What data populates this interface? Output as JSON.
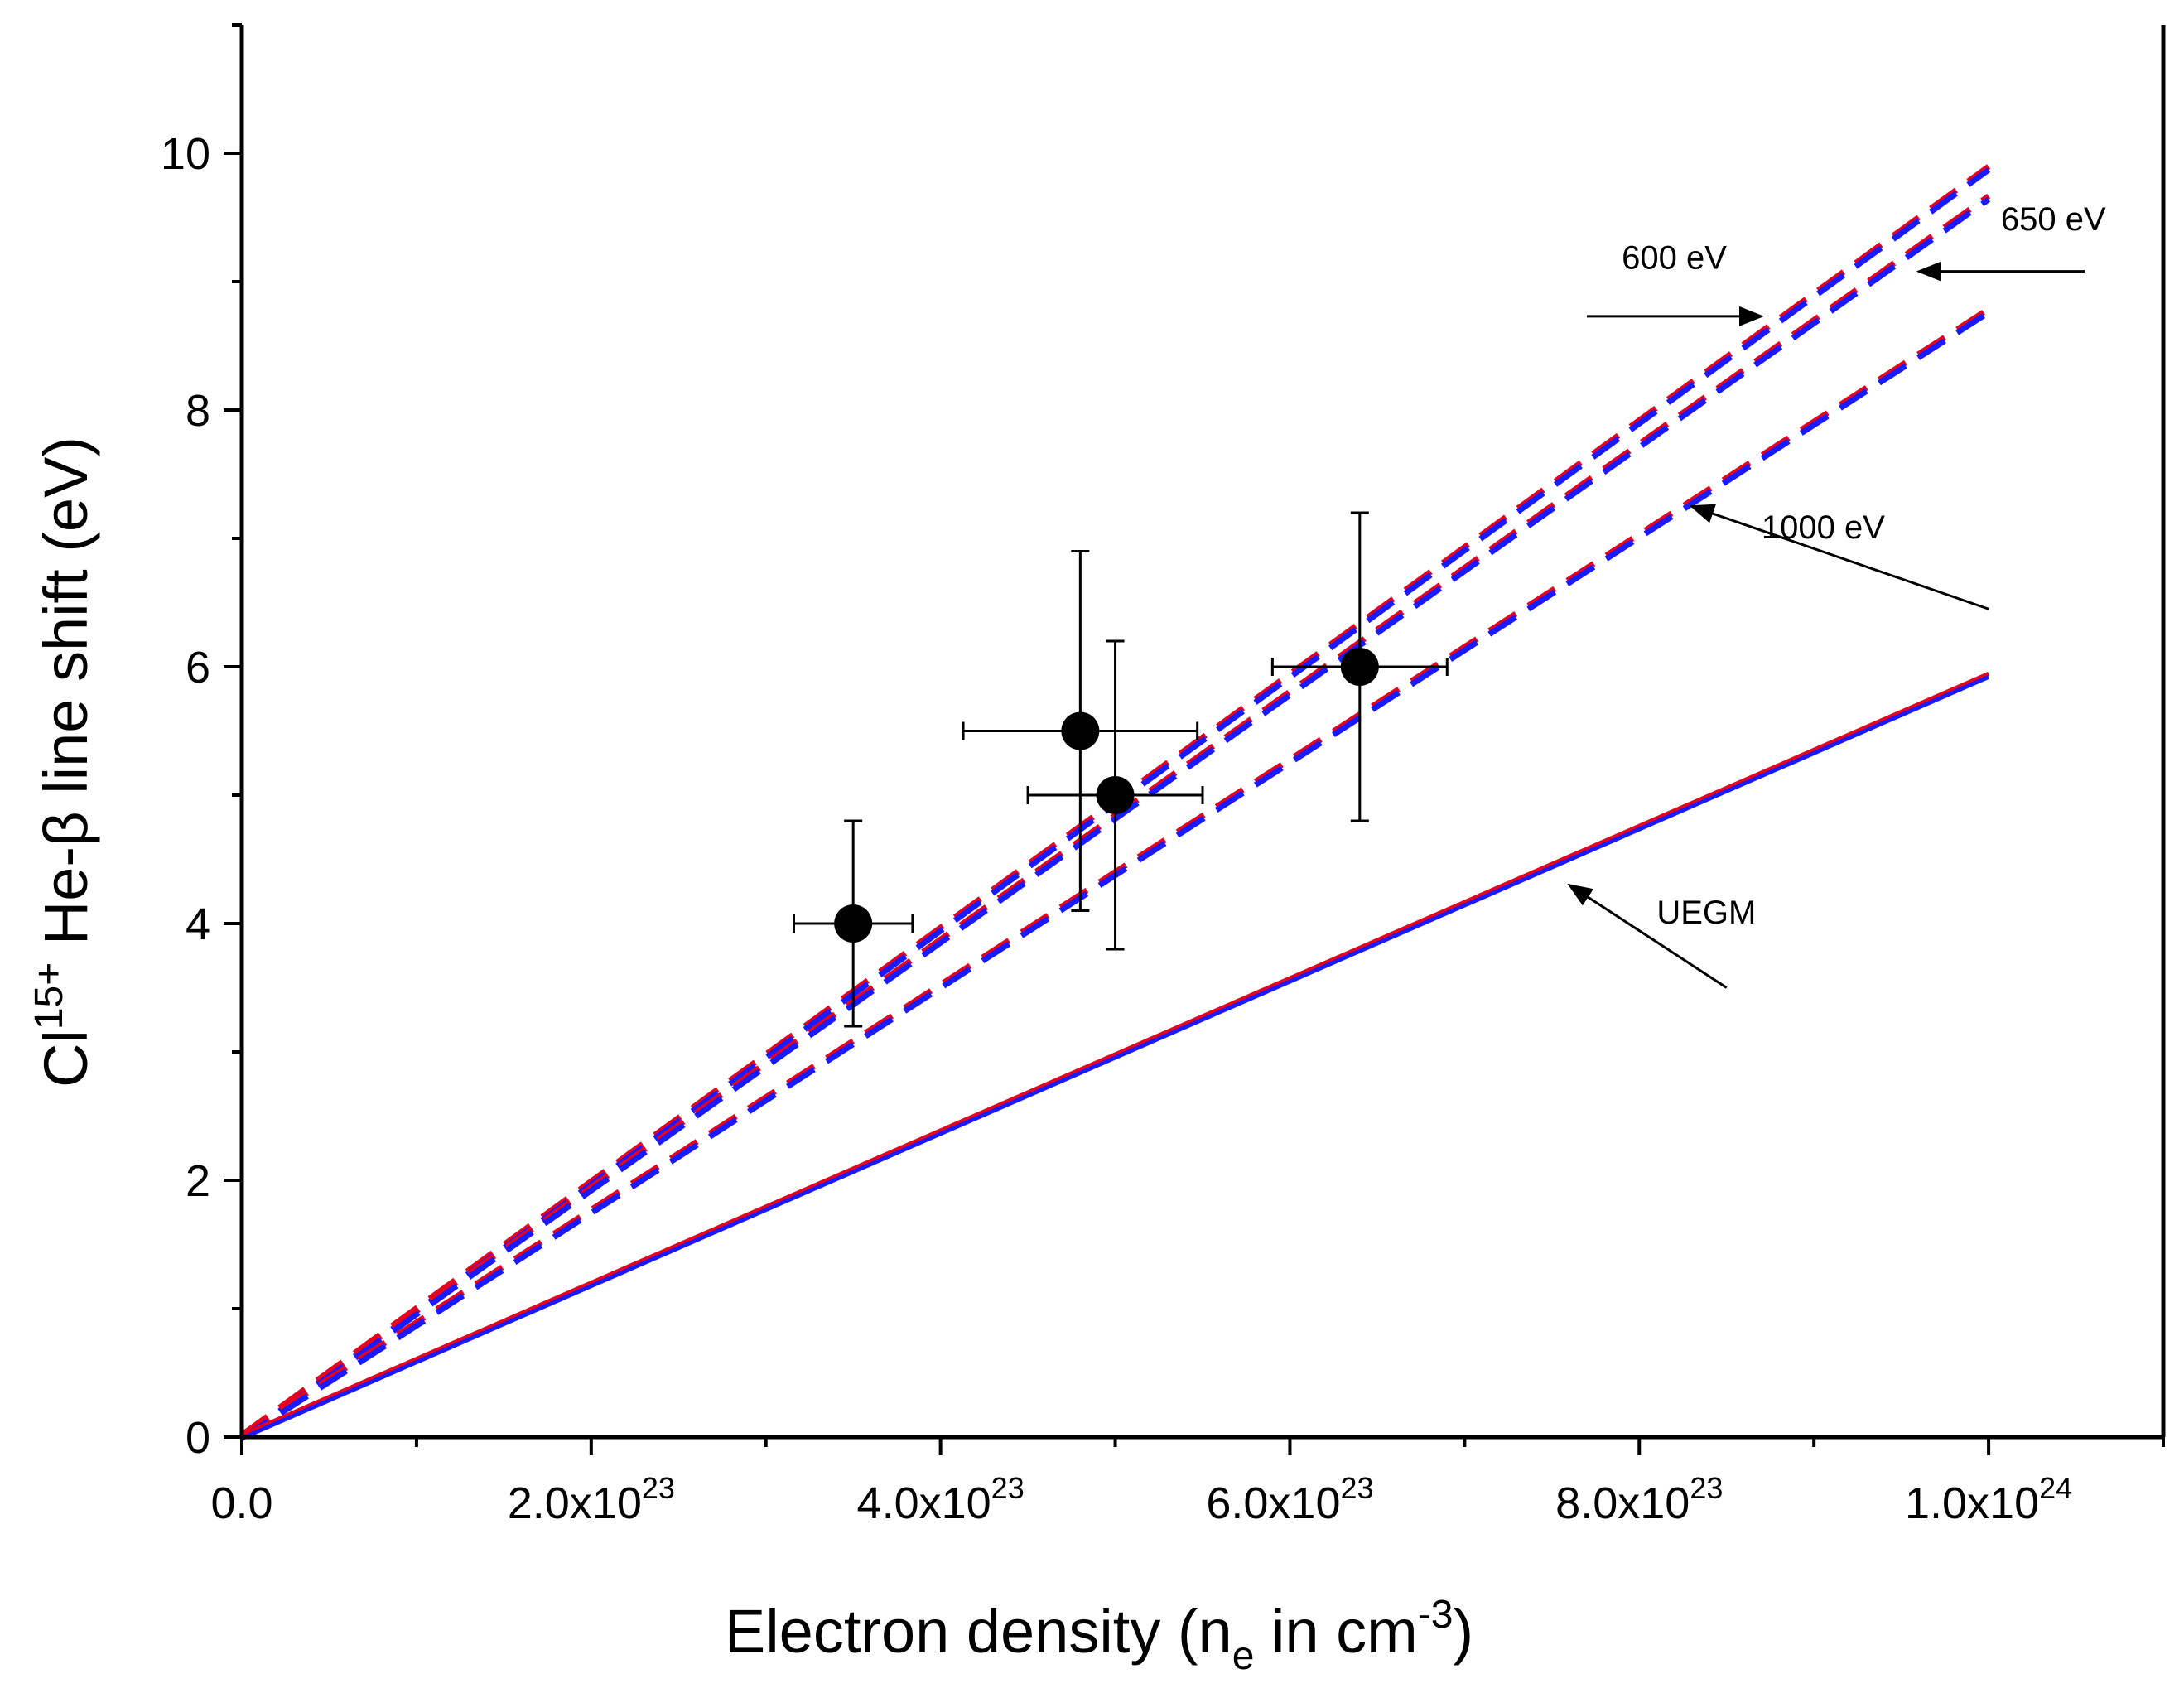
{
  "chart_data": {
    "type": "line",
    "xlabel": {
      "main": "Electron density (n",
      "sub": "e",
      "mid": " in cm",
      "sup": "-3",
      "end": ")"
    },
    "ylabel": {
      "pre": "Cl",
      "sup": "15+",
      "post": " He-β line shift (eV)"
    },
    "xlim": [
      0,
      1.1e+24
    ],
    "ylim": [
      0,
      11
    ],
    "x_ticks": [
      {
        "value": 0,
        "base": "0.0",
        "exp": ""
      },
      {
        "value": 2e+23,
        "base": "2.0x10",
        "exp": "23"
      },
      {
        "value": 4e+23,
        "base": "4.0x10",
        "exp": "23"
      },
      {
        "value": 6e+23,
        "base": "6.0x10",
        "exp": "23"
      },
      {
        "value": 8e+23,
        "base": "8.0x10",
        "exp": "23"
      },
      {
        "value": 1e+24,
        "base": "1.0x10",
        "exp": "24"
      }
    ],
    "x_minor_ticks": [
      1e+23,
      3e+23,
      5e+23,
      7e+23,
      9e+23,
      1.1e+24
    ],
    "y_ticks": [
      0,
      2,
      4,
      6,
      8,
      10
    ],
    "y_minor_ticks": [
      1,
      3,
      5,
      7,
      9,
      11
    ],
    "series": [
      {
        "style": "dashed",
        "x": [
          0,
          1e+24
        ],
        "y": [
          0,
          9.88
        ],
        "colors": [
          "#e8001c",
          "#1a1aff"
        ]
      },
      {
        "style": "dashed",
        "x": [
          0,
          1e+24
        ],
        "y": [
          0,
          9.65
        ],
        "colors": [
          "#e8001c",
          "#1a1aff"
        ]
      },
      {
        "style": "dashed",
        "x": [
          0,
          1e+24
        ],
        "y": [
          0,
          8.77
        ],
        "colors": [
          "#e8001c",
          "#1a1aff"
        ]
      },
      {
        "style": "solid",
        "x": [
          0,
          1e+24
        ],
        "y": [
          0,
          5.93
        ],
        "colors": [
          "#e8001c",
          "#1a1aff"
        ]
      }
    ],
    "points": [
      {
        "x": 3.5e+23,
        "y": 4.0,
        "xerr": 3.4e+22,
        "yerr_low": 0.8,
        "yerr_high": 0.8
      },
      {
        "x": 4.8e+23,
        "y": 5.5,
        "xerr": 6.7e+22,
        "yerr_low": 1.4,
        "yerr_high": 1.4
      },
      {
        "x": 5e+23,
        "y": 5.0,
        "xerr": 5e+22,
        "yerr_low": 1.2,
        "yerr_high": 1.2
      },
      {
        "x": 6.4e+23,
        "y": 6.0,
        "xerr": 5e+22,
        "yerr_low": 1.2,
        "yerr_high": 1.2
      }
    ],
    "annotations": [
      {
        "text": "600 eV",
        "text_x": 7.9e+23,
        "text_y": 9.1,
        "anchor": "start",
        "arrow_from": [
          7.7e+23,
          8.73
        ],
        "arrow_to": [
          8.7e+23,
          8.73
        ]
      },
      {
        "text": "650 eV",
        "text_x": 1.007e+24,
        "text_y": 9.4,
        "anchor": "start",
        "arrow_from": [
          1.055e+24,
          9.08
        ],
        "arrow_to": [
          9.6e+23,
          9.08
        ]
      },
      {
        "text": "1000 eV",
        "text_x": 8.7e+23,
        "text_y": 7.0,
        "anchor": "start",
        "arrow_from": [
          1e+24,
          6.45
        ],
        "arrow_to": [
          8.3e+23,
          7.25
        ]
      },
      {
        "text": "UEGM",
        "text_x": 8.1e+23,
        "text_y": 4.0,
        "anchor": "start",
        "arrow_from": [
          8.5e+23,
          3.5
        ],
        "arrow_to": [
          7.6e+23,
          4.3
        ]
      }
    ]
  },
  "colors": {
    "series_red": "#e8001c",
    "series_blue": "#1a1aff",
    "marker": "#000000"
  }
}
